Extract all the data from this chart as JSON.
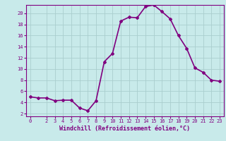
{
  "x": [
    0,
    1,
    2,
    3,
    4,
    5,
    6,
    7,
    8,
    9,
    10,
    11,
    12,
    13,
    14,
    15,
    16,
    17,
    18,
    19,
    20,
    21,
    22,
    23
  ],
  "y": [
    5.0,
    4.8,
    4.8,
    4.3,
    4.4,
    4.4,
    3.0,
    2.5,
    4.3,
    11.3,
    12.8,
    18.6,
    19.3,
    19.2,
    21.2,
    21.5,
    20.3,
    19.0,
    16.0,
    13.7,
    10.2,
    9.4,
    8.0,
    7.8
  ],
  "line_color": "#800080",
  "marker": "D",
  "marker_size": 2.0,
  "background_color": "#c8eaea",
  "grid_color": "#aacece",
  "xlabel": "Windchill (Refroidissement éolien,°C)",
  "xlabel_color": "#800080",
  "tick_color": "#800080",
  "spine_color": "#800080",
  "xlim": [
    -0.5,
    23.5
  ],
  "ylim": [
    1.5,
    21.5
  ],
  "xticks": [
    0,
    2,
    3,
    4,
    5,
    6,
    7,
    8,
    9,
    10,
    11,
    12,
    13,
    14,
    15,
    16,
    17,
    18,
    19,
    20,
    21,
    22,
    23
  ],
  "yticks": [
    2,
    4,
    6,
    8,
    10,
    12,
    14,
    16,
    18,
    20
  ],
  "linewidth": 1.2,
  "xlabel_fontsize": 6.0,
  "tick_fontsize": 5.0
}
